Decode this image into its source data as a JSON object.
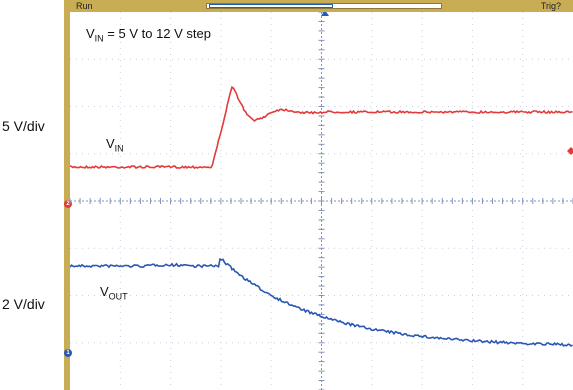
{
  "left_labels": {
    "upper": "5 V/div",
    "lower": "2 V/div"
  },
  "status_bar": {
    "left": "Run",
    "right": "Trig?"
  },
  "annotation": {
    "vin_prefix": "V",
    "vin_sub": "IN",
    "vin_suffix": " = 5 V to 12 V step"
  },
  "traces": {
    "vin": {
      "label": "V",
      "sub": "IN",
      "color": "#e23b3b"
    },
    "vout": {
      "label": "V",
      "sub": "OUT",
      "color": "#2957b3"
    }
  },
  "channel_markers": {
    "vin": "2",
    "vout": "1"
  },
  "colors": {
    "frame": "#c8ad55",
    "grid": "#c9d0dd",
    "axis": "#7f93b8"
  }
}
